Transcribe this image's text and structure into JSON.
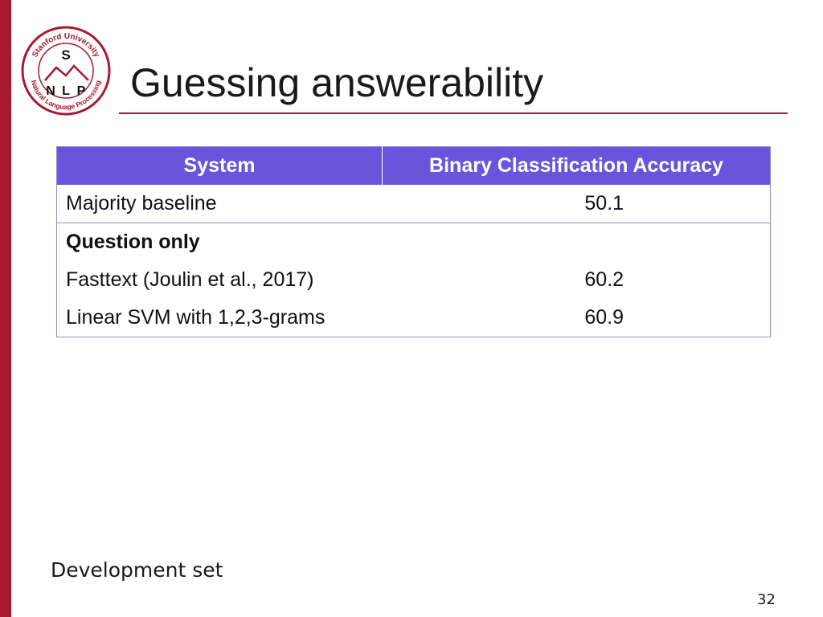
{
  "slide": {
    "title": "Guessing answerability",
    "footnote": "Development set",
    "page_number": "32"
  },
  "logo": {
    "top_text": "Stanford University",
    "bottom_text": "Natural Language Processing",
    "letters": [
      "S",
      "N",
      "L",
      "P"
    ]
  },
  "table": {
    "headers": [
      "System",
      "Binary Classification Accuracy"
    ],
    "rows": [
      {
        "system": "Majority baseline",
        "accuracy": "50.1"
      },
      {
        "system": "Question only",
        "accuracy": ""
      },
      {
        "system": "Fasttext (Joulin et al., 2017)",
        "accuracy": "60.2"
      },
      {
        "system": "Linear SVM with 1,2,3-grams",
        "accuracy": "60.9"
      }
    ]
  },
  "colors": {
    "accent": "#a6192e",
    "table_header_bg": "#6a54db",
    "table_border": "#8e8ccc"
  }
}
